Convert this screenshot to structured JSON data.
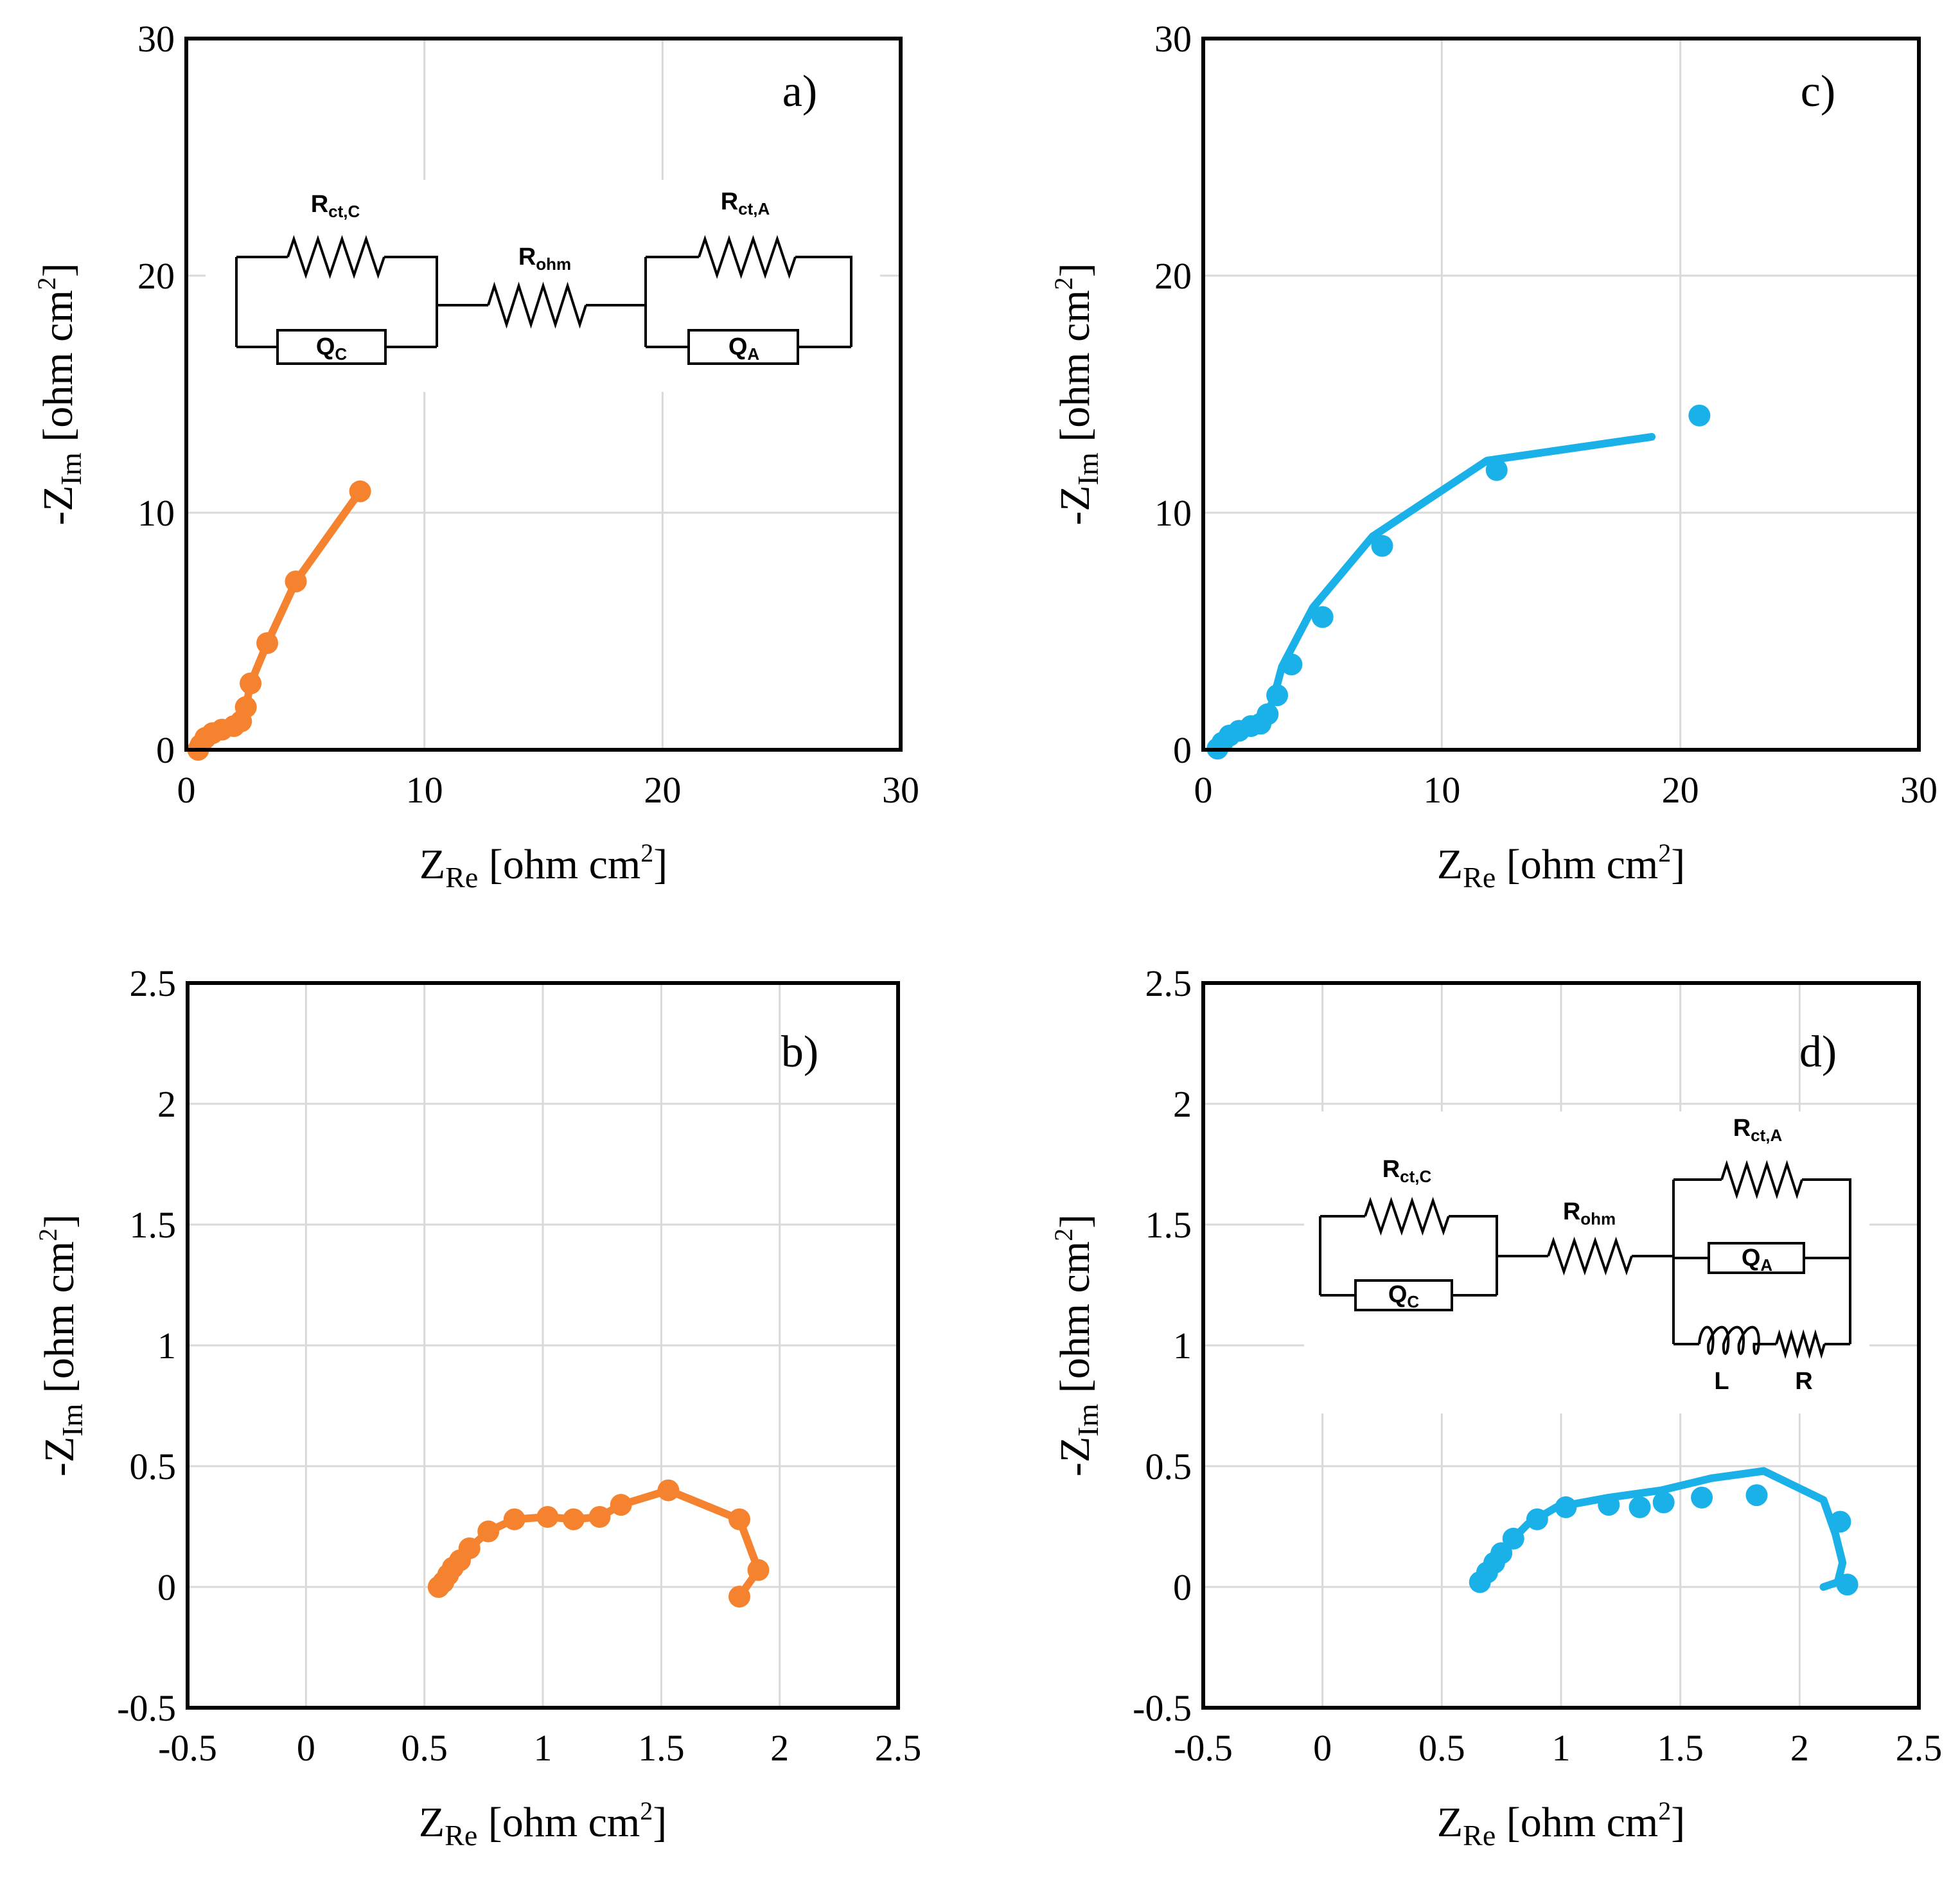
{
  "axis_labels": {
    "x_main": "Z",
    "x_sub": "Re",
    "x_unit": " [ohm cm",
    "x_sup": "2",
    "x_end": "]",
    "y_main": "-Z",
    "y_sub": "Im",
    "y_unit": " [ohm cm",
    "y_sup": "2",
    "y_end": "]"
  },
  "circuit_labels": {
    "rct_c": "R",
    "rct_c_sub": "ct,C",
    "rohm": "R",
    "rohm_sub": "ohm",
    "rct_a": "R",
    "rct_a_sub": "ct,A",
    "qc": "Q",
    "qc_sub": "C",
    "qa": "Q",
    "qa_sub": "A",
    "l": "L",
    "r": "R"
  },
  "colors": {
    "orange": "#F4822E",
    "blue": "#1AB0E8",
    "grid": "#D9D9D9"
  },
  "chart_data": [
    {
      "panel": "a)",
      "type": "line",
      "xlim": [
        0,
        30
      ],
      "ylim": [
        0,
        30
      ],
      "xticks": [
        "0",
        "10",
        "20",
        "30"
      ],
      "yticks": [
        "0",
        "10",
        "20",
        "30"
      ],
      "xtick_values": [
        0,
        10,
        20,
        30
      ],
      "ytick_values": [
        0,
        10,
        20,
        30
      ],
      "grid": true,
      "circuit": "simple",
      "color": "orange",
      "series": [
        {
          "style": "line+markers",
          "x": [
            0.5,
            0.6,
            0.8,
            1.1,
            1.5,
            2.0,
            2.3,
            2.5,
            2.7,
            3.4,
            4.6,
            7.3
          ],
          "y": [
            0.0,
            0.2,
            0.5,
            0.7,
            0.85,
            1.0,
            1.2,
            1.8,
            2.8,
            4.5,
            7.1,
            10.9
          ]
        }
      ]
    },
    {
      "panel": "b)",
      "type": "line",
      "xlim": [
        -0.5,
        2.5
      ],
      "ylim": [
        -0.5,
        2.5
      ],
      "xticks": [
        "-0.5",
        "0",
        "0.5",
        "1",
        "1.5",
        "2",
        "2.5"
      ],
      "yticks": [
        "-0.5",
        "0",
        "0.5",
        "1",
        "1.5",
        "2",
        "2.5"
      ],
      "xtick_values": [
        -0.5,
        0,
        0.5,
        1,
        1.5,
        2,
        2.5
      ],
      "ytick_values": [
        -0.5,
        0,
        0.5,
        1,
        1.5,
        2,
        2.5
      ],
      "grid": true,
      "circuit": "none",
      "color": "orange",
      "series": [
        {
          "style": "line+markers",
          "x": [
            0.56,
            0.58,
            0.6,
            0.62,
            0.65,
            0.69,
            0.77,
            0.88,
            1.02,
            1.13,
            1.24,
            1.33,
            1.53,
            1.83,
            1.91,
            1.83
          ],
          "y": [
            0.0,
            0.02,
            0.05,
            0.08,
            0.11,
            0.16,
            0.23,
            0.28,
            0.29,
            0.28,
            0.29,
            0.34,
            0.4,
            0.28,
            0.07,
            -0.04
          ]
        }
      ]
    },
    {
      "panel": "c)",
      "type": "line",
      "xlim": [
        0,
        30
      ],
      "ylim": [
        0,
        30
      ],
      "xticks": [
        "0",
        "10",
        "20",
        "30"
      ],
      "yticks": [
        "0",
        "10",
        "20",
        "30"
      ],
      "xtick_values": [
        0,
        10,
        20,
        30
      ],
      "ytick_values": [
        0,
        10,
        20,
        30
      ],
      "grid": true,
      "circuit": "none",
      "color": "blue",
      "series": [
        {
          "style": "markers",
          "x": [
            0.6,
            0.8,
            1.1,
            1.5,
            2.0,
            2.4,
            2.7,
            3.1,
            3.7,
            5.0,
            7.5,
            12.3,
            20.8
          ],
          "y": [
            0.05,
            0.3,
            0.6,
            0.8,
            1.0,
            1.1,
            1.5,
            2.3,
            3.6,
            5.6,
            8.6,
            11.8,
            14.1
          ]
        },
        {
          "style": "line",
          "x": [
            0.5,
            0.8,
            1.3,
            2.0,
            2.5,
            2.9,
            3.3,
            4.6,
            7.1,
            11.9,
            18.8
          ],
          "y": [
            0.1,
            0.5,
            0.8,
            1.0,
            1.3,
            2.0,
            3.5,
            6.0,
            9.0,
            12.2,
            13.2
          ]
        }
      ]
    },
    {
      "panel": "d)",
      "type": "line",
      "xlim": [
        -0.5,
        2.5
      ],
      "ylim": [
        -0.5,
        2.5
      ],
      "xticks": [
        "-0.5",
        "0",
        "0.5",
        "1",
        "1.5",
        "2",
        "2.5"
      ],
      "yticks": [
        "-0.5",
        "0",
        "0.5",
        "1",
        "1.5",
        "2",
        "2.5"
      ],
      "xtick_values": [
        -0.5,
        0,
        0.5,
        1,
        1.5,
        2,
        2.5
      ],
      "ytick_values": [
        -0.5,
        0,
        0.5,
        1,
        1.5,
        2,
        2.5
      ],
      "grid": true,
      "circuit": "inductive",
      "color": "blue",
      "series": [
        {
          "style": "markers",
          "x": [
            0.66,
            0.69,
            0.72,
            0.75,
            0.8,
            0.9,
            1.02,
            1.2,
            1.33,
            1.43,
            1.59,
            1.82,
            2.17,
            2.2
          ],
          "y": [
            0.02,
            0.06,
            0.1,
            0.14,
            0.2,
            0.28,
            0.33,
            0.34,
            0.33,
            0.35,
            0.37,
            0.38,
            0.27,
            0.01
          ]
        },
        {
          "style": "line",
          "x": [
            0.65,
            0.7,
            0.77,
            0.86,
            0.98,
            1.2,
            1.42,
            1.63,
            1.85,
            2.1,
            2.15,
            2.18,
            2.16,
            2.1
          ],
          "y": [
            0.0,
            0.08,
            0.17,
            0.26,
            0.33,
            0.37,
            0.4,
            0.45,
            0.48,
            0.36,
            0.22,
            0.1,
            0.02,
            0.0
          ]
        }
      ]
    }
  ]
}
